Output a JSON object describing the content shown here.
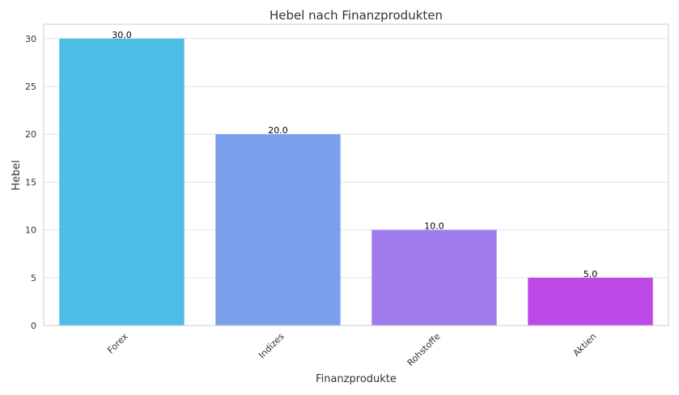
{
  "chart_data": {
    "type": "bar",
    "title": "Hebel nach Finanzprodukten",
    "xlabel": "Finanzprodukte",
    "ylabel": "Hebel",
    "categories": [
      "Forex",
      "Indizes",
      "Rohstoffe",
      "Aktien"
    ],
    "values": [
      30,
      20,
      10,
      5
    ],
    "data_labels": [
      "30.0",
      "20.0",
      "10.0",
      "5.0"
    ],
    "colors": [
      "#4dbde6",
      "#7aa0eb",
      "#a17ced",
      "#bd4ae8"
    ],
    "ylim": [
      0,
      31.5
    ],
    "yticks": [
      0,
      5,
      10,
      15,
      20,
      25,
      30
    ],
    "grid": true,
    "legend": "none"
  }
}
